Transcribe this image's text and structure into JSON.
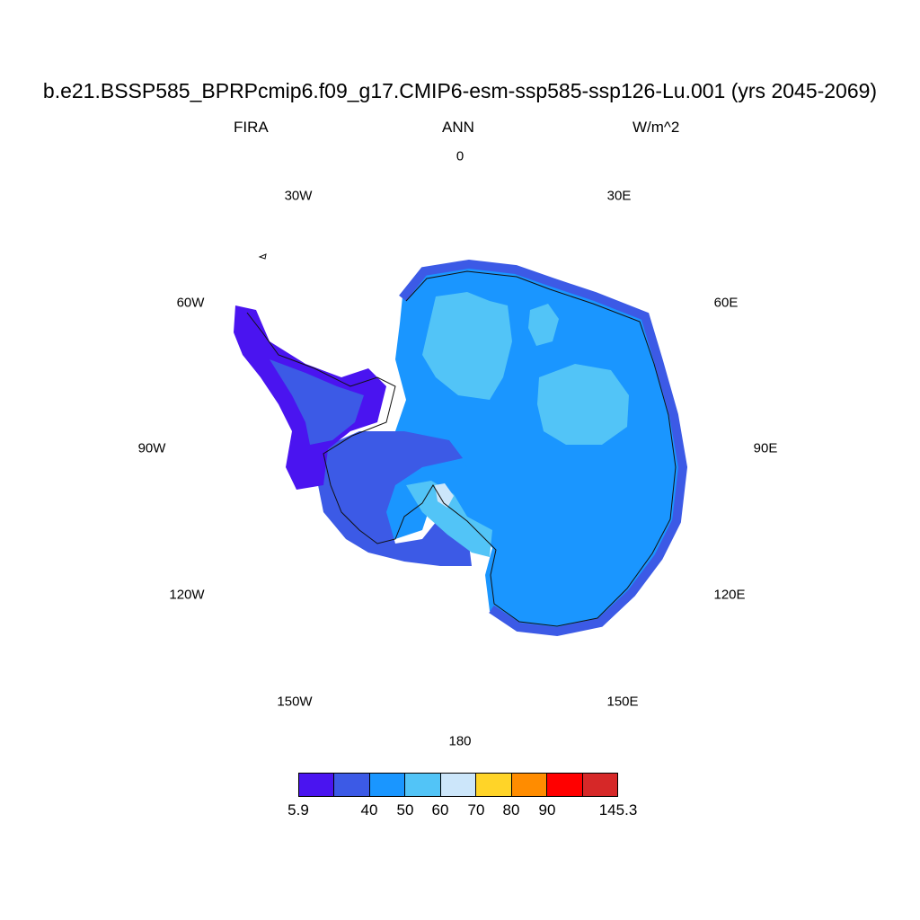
{
  "header": {
    "title": "b.e21.BSSP585_BPRPcmip6.f09_g17.CMIP6-esm-ssp585-ssp126-Lu.001 (yrs 2045-2069)",
    "variable": "FIRA",
    "season": "ANN",
    "units": "W/m^2"
  },
  "longitude_labels": {
    "lon_0": "0",
    "lon_30e": "30E",
    "lon_60e": "60E",
    "lon_90e": "90E",
    "lon_120e": "120E",
    "lon_150e": "150E",
    "lon_180": "180",
    "lon_150w": "150W",
    "lon_120w": "120W",
    "lon_90w": "90W",
    "lon_60w": "60W",
    "lon_30w": "30W"
  },
  "colorbar": {
    "colors": [
      "#4a14f0",
      "#3c5ae6",
      "#1a96ff",
      "#52c4f7",
      "#cce6fa",
      "#ffd428",
      "#ff8c00",
      "#ff0000",
      "#d62828"
    ],
    "labels": {
      "min": "5.9",
      "t40": "40",
      "t50": "50",
      "t60": "60",
      "t70": "70",
      "t80": "80",
      "t90": "90",
      "max": "145.3"
    }
  }
}
